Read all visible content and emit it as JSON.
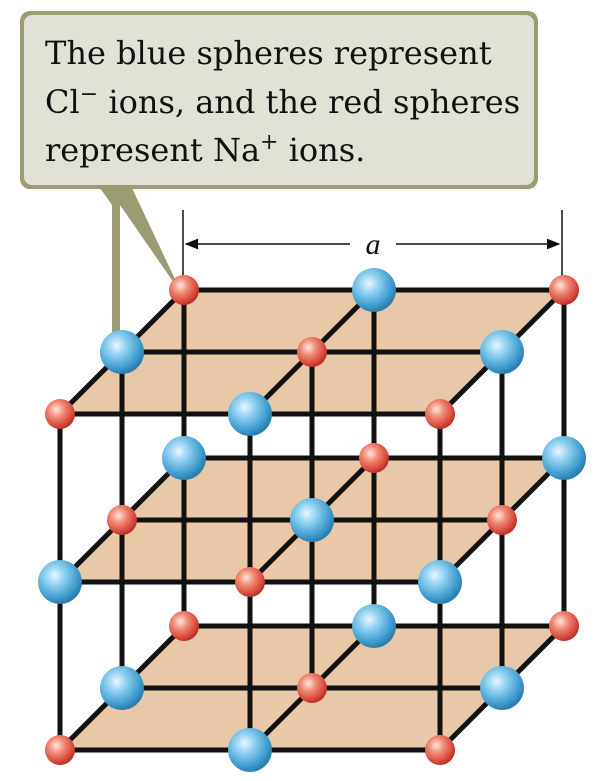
{
  "callout": {
    "line1": "The blue spheres represent",
    "line2_prefix": "Cl",
    "line2_sup": "−",
    "line2_suffix": " ions, and the red spheres",
    "line3_prefix": "represent Na",
    "line3_sup": "+",
    "line3_suffix": " ions."
  },
  "dimension": {
    "label": "a"
  },
  "legend": {
    "blue": {
      "ion": "Cl-",
      "color": "#5aaedb"
    },
    "red": {
      "ion": "Na+",
      "color": "#e0584a"
    }
  },
  "colors": {
    "plane": "#e8c8a6",
    "bond": "#111111",
    "callout_fill": "#e2e1d5",
    "callout_border": "#9c9c72"
  }
}
